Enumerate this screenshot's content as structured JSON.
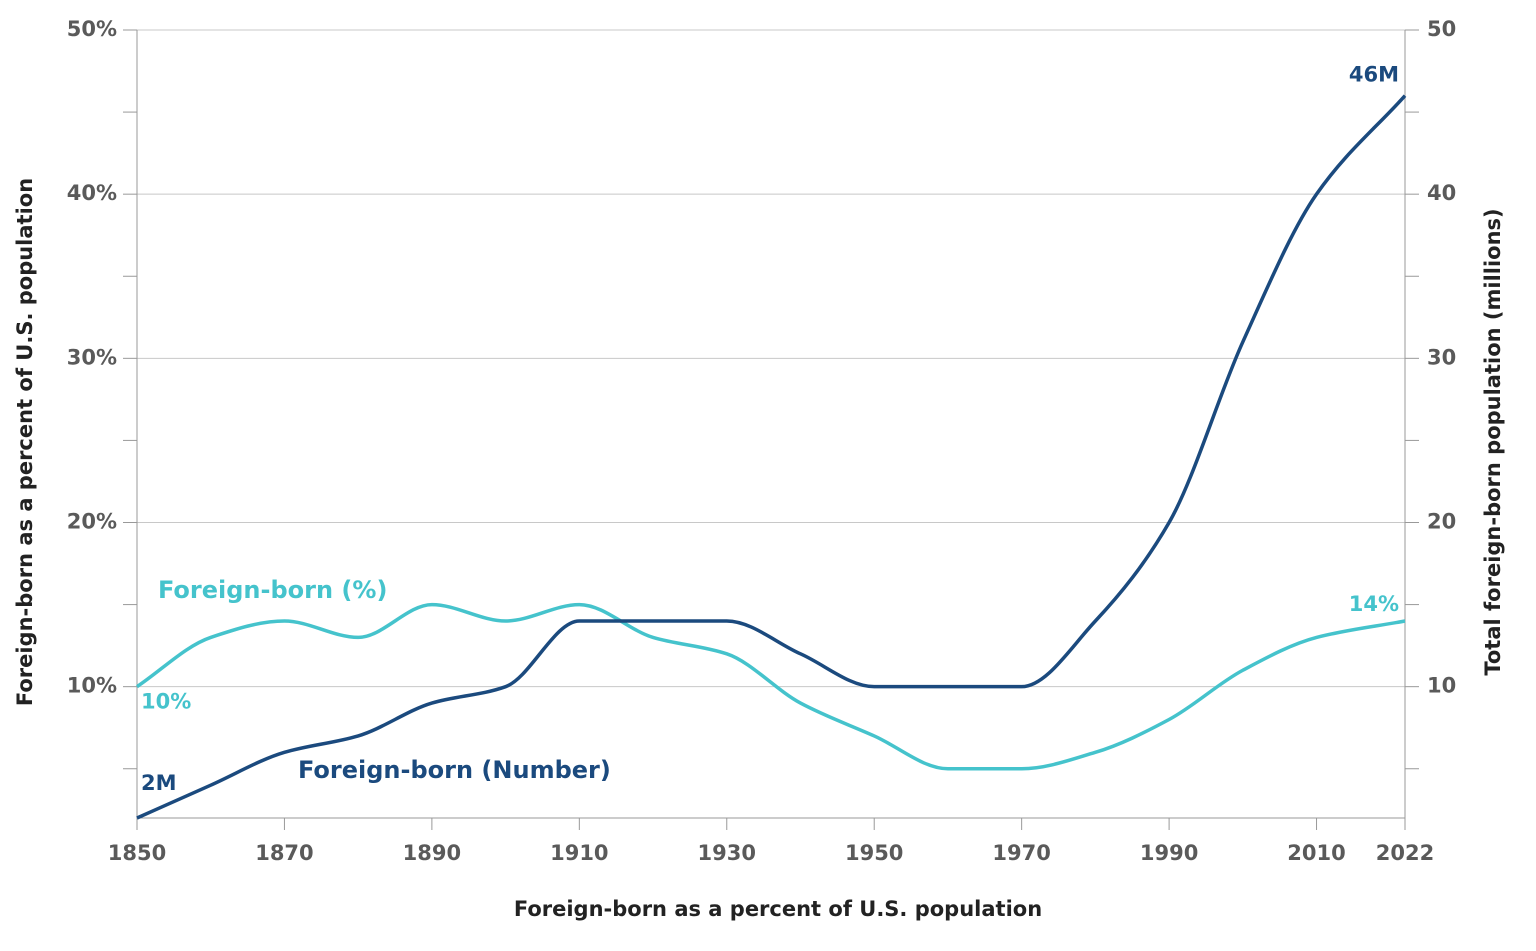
{
  "chart_data": {
    "type": "line",
    "x_label": "Foreign-born as a percent of U.S. population",
    "y_label": "Foreign-born as a percent of U.S. population",
    "y2_label": "Total foreign-born population (millions)",
    "x": [
      1850,
      1860,
      1870,
      1880,
      1890,
      1900,
      1910,
      1920,
      1930,
      1940,
      1950,
      1960,
      1970,
      1980,
      1990,
      2000,
      2010,
      2022
    ],
    "xlim": [
      1850,
      2022
    ],
    "xticks": [
      1850,
      1870,
      1890,
      1910,
      1930,
      1950,
      1970,
      1990,
      2010,
      2022
    ],
    "ylim": [
      2,
      50
    ],
    "yticks": [
      {
        "value": 10,
        "label": "10%"
      },
      {
        "value": 20,
        "label": "20%"
      },
      {
        "value": 30,
        "label": "30%"
      },
      {
        "value": 40,
        "label": "40%"
      },
      {
        "value": 50,
        "label": "50%"
      }
    ],
    "yminor": [
      5,
      15,
      25,
      35,
      45
    ],
    "y2lim": [
      2,
      50
    ],
    "y2ticks": [
      10,
      20,
      30,
      40,
      50
    ],
    "grid": true,
    "series": [
      {
        "name": "Foreign-born (%)",
        "color": "#45c3cc",
        "values": [
          10,
          13,
          14,
          13,
          15,
          14,
          15,
          13,
          12,
          9,
          7,
          5,
          5,
          6,
          8,
          11,
          13,
          14
        ],
        "value_labels": [
          "10%",
          null,
          null,
          null,
          null,
          null,
          null,
          null,
          null,
          null,
          null,
          null,
          null,
          null,
          null,
          null,
          null,
          "14%"
        ]
      },
      {
        "name": "Foreign-born (Number)",
        "color": "#1b4a7e",
        "axis": "y2",
        "values": [
          2,
          4,
          6,
          7,
          9,
          10,
          14,
          14,
          14,
          12,
          10,
          10,
          10,
          14,
          20,
          31,
          40,
          46
        ],
        "value_labels": [
          "2M",
          null,
          null,
          null,
          null,
          null,
          null,
          null,
          null,
          null,
          null,
          null,
          null,
          null,
          null,
          null,
          null,
          "46M"
        ]
      }
    ]
  }
}
